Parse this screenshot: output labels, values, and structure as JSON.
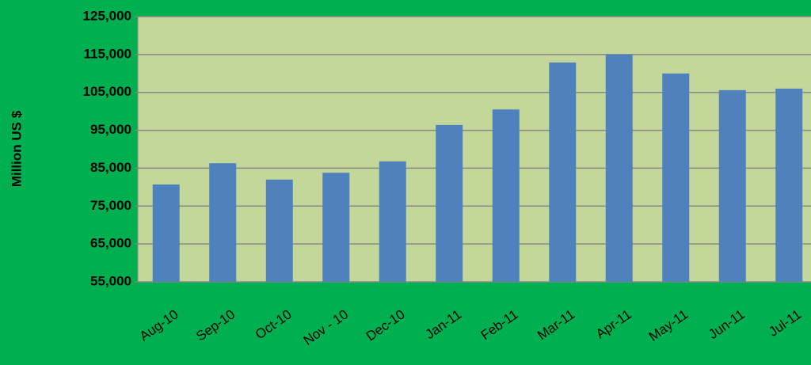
{
  "chart_data": {
    "type": "bar",
    "y_label": "Million US $",
    "categories": [
      "Aug-10",
      "Sep-10",
      "Oct-10",
      "Nov - 10",
      "Dec-10",
      "Jan-11",
      "Feb-11",
      "Mar-11",
      "Apr-11",
      "May-11",
      "Jun-11",
      "Jul-11"
    ],
    "values": [
      80700,
      86300,
      82000,
      83800,
      86800,
      96400,
      100500,
      112900,
      115000,
      110000,
      105600,
      106000
    ],
    "color": "#4f81bd",
    "ylim": [
      55000,
      125000
    ],
    "yticks": [
      {
        "value": 55000,
        "label": "55,000"
      },
      {
        "value": 65000,
        "label": "65,000"
      },
      {
        "value": 75000,
        "label": "75,000"
      },
      {
        "value": 85000,
        "label": "85,000"
      },
      {
        "value": 95000,
        "label": "95,000"
      },
      {
        "value": 105000,
        "label": "105,000"
      },
      {
        "value": 115000,
        "label": "115,000"
      },
      {
        "value": 125000,
        "label": "125,000"
      }
    ],
    "grid": true
  }
}
